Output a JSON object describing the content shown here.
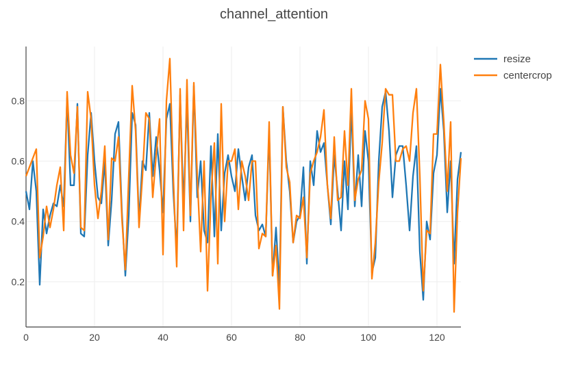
{
  "chart_data": {
    "type": "line",
    "title": "channel_attention",
    "xlabel": "",
    "ylabel": "",
    "xlim": [
      0,
      127
    ],
    "ylim": [
      0.05,
      0.98
    ],
    "xticks": [
      0,
      20,
      40,
      60,
      80,
      100,
      120
    ],
    "yticks": [
      0.2,
      0.4,
      0.6,
      0.8
    ],
    "tick_labels_x": [
      "0",
      "20",
      "40",
      "60",
      "80",
      "100",
      "120"
    ],
    "tick_labels_y": [
      "0.2",
      "0.4",
      "0.6",
      "0.8"
    ],
    "grid": true,
    "legend_position": "top-right",
    "series": [
      {
        "name": "resize",
        "color": "#1f77b4",
        "values": [
          0.5,
          0.44,
          0.6,
          0.5,
          0.19,
          0.44,
          0.36,
          0.42,
          0.46,
          0.45,
          0.52,
          0.45,
          0.81,
          0.52,
          0.52,
          0.79,
          0.36,
          0.35,
          0.62,
          0.76,
          0.6,
          0.48,
          0.46,
          0.6,
          0.32,
          0.47,
          0.69,
          0.73,
          0.43,
          0.22,
          0.42,
          0.76,
          0.72,
          0.4,
          0.6,
          0.57,
          0.76,
          0.55,
          0.68,
          0.57,
          0.43,
          0.74,
          0.79,
          0.5,
          0.3,
          0.82,
          0.45,
          0.8,
          0.4,
          0.85,
          0.48,
          0.6,
          0.37,
          0.33,
          0.65,
          0.35,
          0.69,
          0.37,
          0.56,
          0.62,
          0.55,
          0.5,
          0.64,
          0.55,
          0.47,
          0.58,
          0.62,
          0.42,
          0.37,
          0.39,
          0.35,
          0.7,
          0.22,
          0.38,
          0.18,
          0.78,
          0.6,
          0.5,
          0.33,
          0.4,
          0.42,
          0.58,
          0.26,
          0.6,
          0.52,
          0.7,
          0.63,
          0.66,
          0.52,
          0.39,
          0.62,
          0.5,
          0.37,
          0.6,
          0.44,
          0.78,
          0.45,
          0.62,
          0.45,
          0.7,
          0.6,
          0.23,
          0.28,
          0.6,
          0.78,
          0.83,
          0.7,
          0.48,
          0.62,
          0.65,
          0.65,
          0.52,
          0.37,
          0.55,
          0.65,
          0.3,
          0.14,
          0.4,
          0.34,
          0.56,
          0.62,
          0.84,
          0.7,
          0.43,
          0.6,
          0.26,
          0.54,
          0.63
        ]
      },
      {
        "name": "centercrop",
        "color": "#ff7f0e",
        "values": [
          0.55,
          0.58,
          0.61,
          0.64,
          0.28,
          0.35,
          0.45,
          0.38,
          0.44,
          0.52,
          0.58,
          0.37,
          0.83,
          0.62,
          0.56,
          0.78,
          0.38,
          0.37,
          0.83,
          0.74,
          0.52,
          0.41,
          0.5,
          0.65,
          0.34,
          0.61,
          0.6,
          0.68,
          0.41,
          0.24,
          0.55,
          0.85,
          0.7,
          0.38,
          0.55,
          0.76,
          0.74,
          0.48,
          0.62,
          0.74,
          0.29,
          0.8,
          0.94,
          0.55,
          0.25,
          0.84,
          0.37,
          0.87,
          0.42,
          0.86,
          0.55,
          0.3,
          0.6,
          0.17,
          0.48,
          0.66,
          0.26,
          0.79,
          0.4,
          0.6,
          0.6,
          0.64,
          0.44,
          0.6,
          0.55,
          0.47,
          0.6,
          0.6,
          0.31,
          0.36,
          0.35,
          0.73,
          0.22,
          0.32,
          0.11,
          0.78,
          0.58,
          0.53,
          0.33,
          0.42,
          0.41,
          0.48,
          0.28,
          0.56,
          0.6,
          0.63,
          0.68,
          0.77,
          0.52,
          0.41,
          0.68,
          0.47,
          0.48,
          0.7,
          0.52,
          0.84,
          0.47,
          0.54,
          0.57,
          0.8,
          0.74,
          0.21,
          0.33,
          0.53,
          0.66,
          0.84,
          0.82,
          0.82,
          0.6,
          0.6,
          0.64,
          0.65,
          0.6,
          0.76,
          0.84,
          0.55,
          0.17,
          0.37,
          0.36,
          0.69,
          0.69,
          0.92,
          0.73,
          0.5,
          0.73,
          0.1,
          0.43,
          0.61
        ]
      }
    ]
  }
}
